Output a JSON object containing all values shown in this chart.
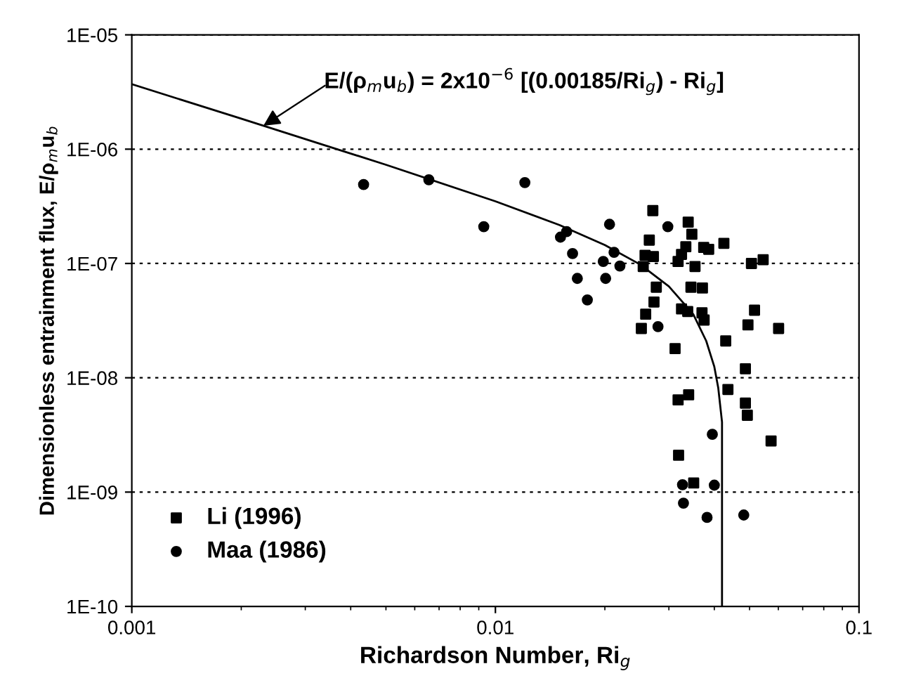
{
  "chart_data": {
    "type": "scatter",
    "xlabel": "Richardson Number, Ri$_{g}$",
    "ylabel": "Dimensionless entrainment flux, E/ρ$_{m}$u$_{b}$",
    "log": "xy",
    "grid": "y",
    "legend": "bottom left",
    "xlim": [
      0.001,
      0.1
    ],
    "xticks": [
      0.001,
      0.01,
      0.1
    ],
    "ylim": [
      1e-10,
      1e-05
    ],
    "yticks": [
      {
        "value": 1e-10,
        "label": "1E-10"
      },
      {
        "value": 1e-09,
        "label": "1E-09"
      },
      {
        "value": 1e-08,
        "label": "1E-08"
      },
      {
        "value": 1e-07,
        "label": "1E-07"
      },
      {
        "value": 1e-06,
        "label": "1E-06"
      },
      {
        "value": 1e-05,
        "label": "1E-05"
      }
    ],
    "annotations": [
      "E/(ρ$_{m}$u$_{b}$) = 2x10$^{−6}$ [(0.00185/Ri$_{g}$) - Ri$_{g}$]"
    ],
    "series": [
      {
        "name": "Li (1996)",
        "marker": "square",
        "color": "#000000",
        "x": [
          0.0271,
          0.0339,
          0.0347,
          0.0334,
          0.0325,
          0.0318,
          0.0265,
          0.0258,
          0.0272,
          0.0255,
          0.0354,
          0.0374,
          0.0386,
          0.0425,
          0.0506,
          0.0545,
          0.0277,
          0.0273,
          0.0259,
          0.0252,
          0.0345,
          0.0371,
          0.0325,
          0.0338,
          0.037,
          0.0375,
          0.0312,
          0.043,
          0.0516,
          0.0495,
          0.0601,
          0.0487,
          0.0436,
          0.0318,
          0.034,
          0.0487,
          0.0493,
          0.0573,
          0.0319,
          0.0351
        ],
        "values": [
          2.9e-07,
          2.3e-07,
          1.8e-07,
          1.4e-07,
          1.2e-07,
          1.04e-07,
          1.6e-07,
          1.18e-07,
          1.15e-07,
          9.4e-08,
          9.4e-08,
          1.38e-07,
          1.33e-07,
          1.5e-07,
          1e-07,
          1.08e-07,
          6.2e-08,
          4.6e-08,
          3.6e-08,
          2.7e-08,
          6.2e-08,
          6.1e-08,
          4e-08,
          3.8e-08,
          3.7e-08,
          3.2e-08,
          1.8e-08,
          2.1e-08,
          3.9e-08,
          2.9e-08,
          2.7e-08,
          1.2e-08,
          7.9e-09,
          6.4e-09,
          7.1e-09,
          6e-09,
          4.7e-09,
          2.8e-09,
          2.1e-09,
          1.2e-09
        ]
      },
      {
        "name": "Maa (1986)",
        "marker": "circle",
        "color": "#000000",
        "x": [
          0.00434,
          0.00656,
          0.00929,
          0.01205,
          0.0151,
          0.0157,
          0.0163,
          0.0168,
          0.0179,
          0.0206,
          0.0198,
          0.0201,
          0.0212,
          0.022,
          0.0298,
          0.028,
          0.0395,
          0.0327,
          0.04,
          0.0329,
          0.0382,
          0.0482
        ],
        "values": [
          4.9e-07,
          5.4e-07,
          2.1e-07,
          5.1e-07,
          1.7e-07,
          1.9e-07,
          1.22e-07,
          7.4e-08,
          4.8e-08,
          2.2e-07,
          1.04e-07,
          7.4e-08,
          1.25e-07,
          9.5e-08,
          2.1e-07,
          2.8e-08,
          3.2e-09,
          1.16e-09,
          1.15e-09,
          8e-10,
          6e-10,
          6.3e-10
        ]
      },
      {
        "type": "line",
        "color": "#000000",
        "line_style": "solid",
        "x": [
          0.001,
          0.002,
          0.005,
          0.01,
          0.015,
          0.02,
          0.025,
          0.03,
          0.035,
          0.038,
          0.04,
          0.041,
          0.042,
          0.042
        ],
        "values": [
          3.7e-06,
          1.85e-06,
          7.3e-07,
          3.5e-07,
          2.17e-07,
          1.45e-07,
          9.8e-08,
          6.3e-08,
          3.6e-08,
          2.1e-08,
          1.25e-08,
          8.2e-09,
          4.1e-09,
          1e-10
        ]
      }
    ]
  }
}
